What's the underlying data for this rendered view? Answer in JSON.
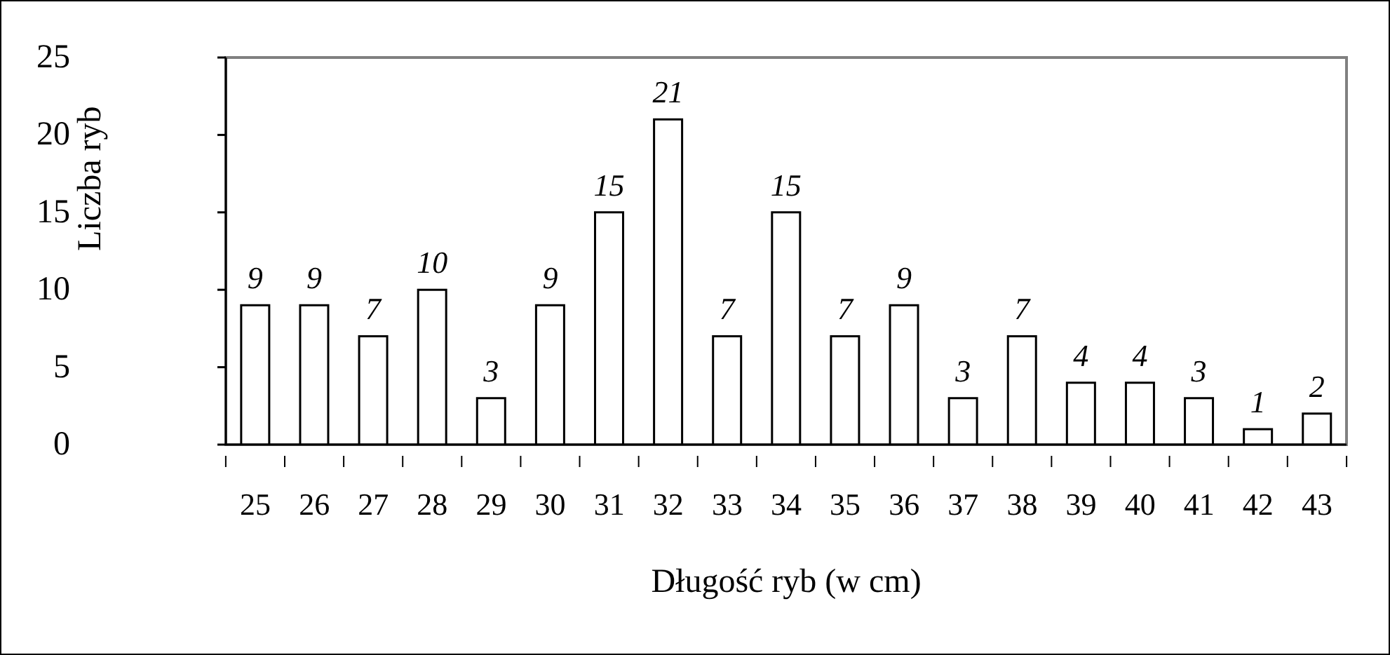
{
  "chart_data": {
    "type": "bar",
    "xlabel": "Długość ryb (w cm)",
    "ylabel": "Liczba ryb",
    "categories": [
      "25",
      "26",
      "27",
      "28",
      "29",
      "30",
      "31",
      "32",
      "33",
      "34",
      "35",
      "36",
      "37",
      "38",
      "39",
      "40",
      "41",
      "42",
      "43"
    ],
    "values": [
      9,
      9,
      7,
      10,
      3,
      9,
      15,
      21,
      7,
      15,
      7,
      9,
      3,
      7,
      4,
      4,
      3,
      1,
      2
    ],
    "color": "#ffffff",
    "ylim": [
      0,
      25
    ],
    "yticks": [
      0,
      5,
      10,
      15,
      20,
      25
    ],
    "grid": false,
    "data_labels": true
  }
}
